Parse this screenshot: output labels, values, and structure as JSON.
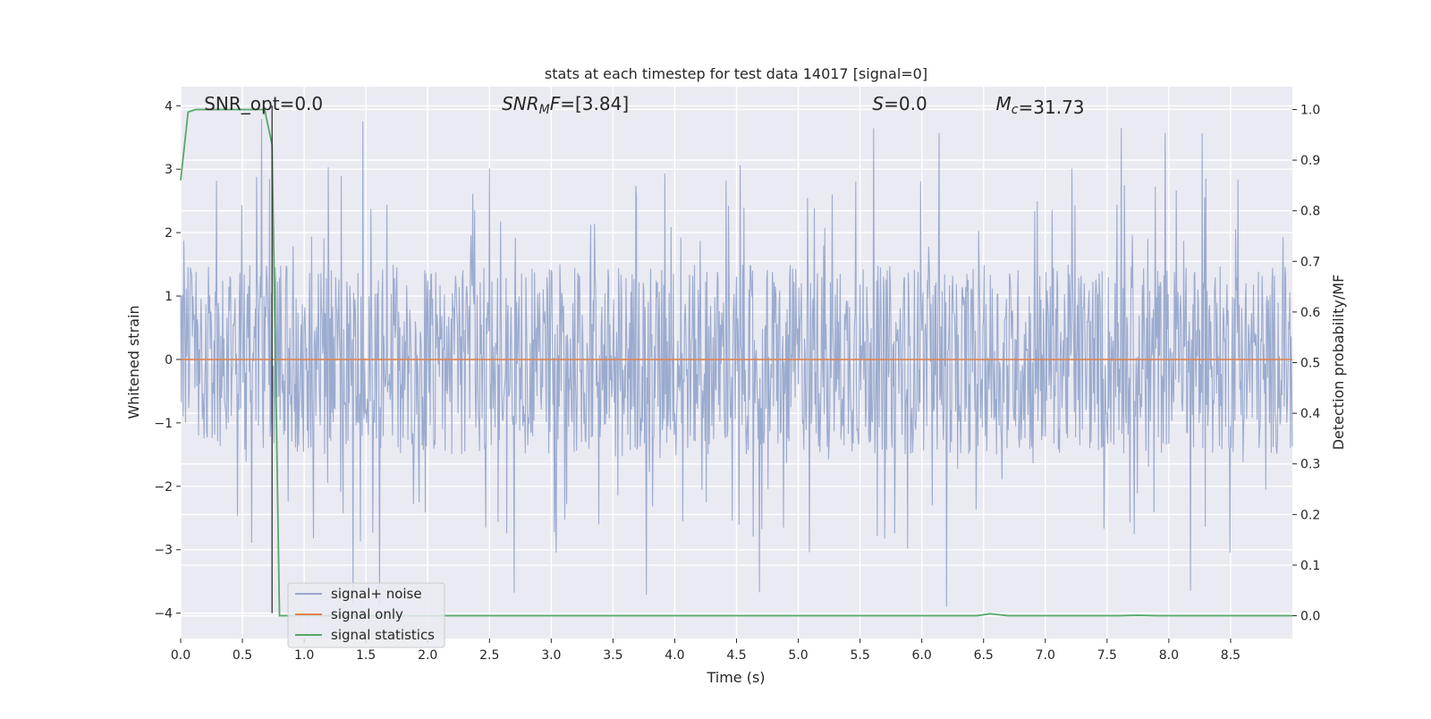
{
  "chart_data": {
    "type": "line",
    "title": "stats at each timestep for test data 14017 [signal=0]",
    "xlabel": "Time (s)",
    "ylabel": "Whitened strain",
    "y2label": "Detection probability/MF",
    "xlim": [
      0,
      9.0
    ],
    "ylim": [
      -4.4,
      4.3
    ],
    "y2lim": [
      -0.045,
      1.045
    ],
    "x_ticks": [
      0.0,
      0.5,
      1.0,
      1.5,
      2.0,
      2.5,
      3.0,
      3.5,
      4.0,
      4.5,
      5.0,
      5.5,
      6.0,
      6.5,
      7.0,
      7.5,
      8.0,
      8.5
    ],
    "x_tick_labels": [
      "0.0",
      "0.5",
      "1.0",
      "1.5",
      "2.0",
      "2.5",
      "3.0",
      "3.5",
      "4.0",
      "4.5",
      "5.0",
      "5.5",
      "6.0",
      "6.5",
      "7.0",
      "7.5",
      "8.0",
      "8.5"
    ],
    "y_ticks": [
      -4,
      -3,
      -2,
      -1,
      0,
      1,
      2,
      3,
      4
    ],
    "y_tick_labels": [
      "−4",
      "−3",
      "−2",
      "−1",
      "0",
      "1",
      "2",
      "3",
      "4"
    ],
    "y2_ticks": [
      0.0,
      0.1,
      0.2,
      0.3,
      0.4,
      0.5,
      0.6,
      0.7,
      0.8,
      0.9,
      1.0
    ],
    "y2_tick_labels": [
      "0.0",
      "0.1",
      "0.2",
      "0.3",
      "0.4",
      "0.5",
      "0.6",
      "0.7",
      "0.8",
      "0.9",
      "1.0"
    ],
    "grid": true,
    "legend_position": "lower-left",
    "annotations": [
      {
        "label": "SNR_opt",
        "value": "=0.0",
        "italic": false,
        "x_data": 0.19
      },
      {
        "label": "SNR",
        "sub": "M",
        "label_tail": "F",
        "value": "=[3.84]",
        "italic": true,
        "x_data": 2.6
      },
      {
        "label": "S",
        "value": "=0.0",
        "italic": true,
        "x_data": 5.6
      },
      {
        "label": "M",
        "sub": "c",
        "value": "=31.73",
        "italic": true,
        "x_data": 6.6
      }
    ],
    "marker_line_x": 0.74,
    "series": [
      {
        "name": "signal+ noise",
        "color": "#97a8cc",
        "axis": "left",
        "kind": "noise",
        "band": [
          -1.5,
          1.5
        ],
        "spike_max": 3.9,
        "spike_min": -4.0
      },
      {
        "name": "signal only",
        "color": "#dd8452",
        "axis": "left",
        "x": [
          0,
          9.0
        ],
        "y": [
          0,
          0
        ]
      },
      {
        "name": "signal statistics",
        "color": "#55a868",
        "axis": "right",
        "x": [
          0.0,
          0.06,
          0.12,
          0.3,
          0.5,
          0.68,
          0.74,
          0.8,
          1.0,
          2.0,
          3.0,
          4.0,
          5.0,
          6.0,
          6.45,
          6.55,
          6.7,
          7.0,
          7.6,
          7.75,
          7.9,
          8.5,
          9.0
        ],
        "y": [
          0.86,
          0.995,
          1.0,
          1.0,
          1.0,
          1.0,
          0.93,
          0.0,
          0.0,
          0.0,
          0.0,
          0.0,
          0.0,
          0.0,
          0.0,
          0.004,
          0.0,
          0.0,
          0.0,
          0.001,
          0.0,
          0.0,
          0.0
        ]
      }
    ]
  }
}
